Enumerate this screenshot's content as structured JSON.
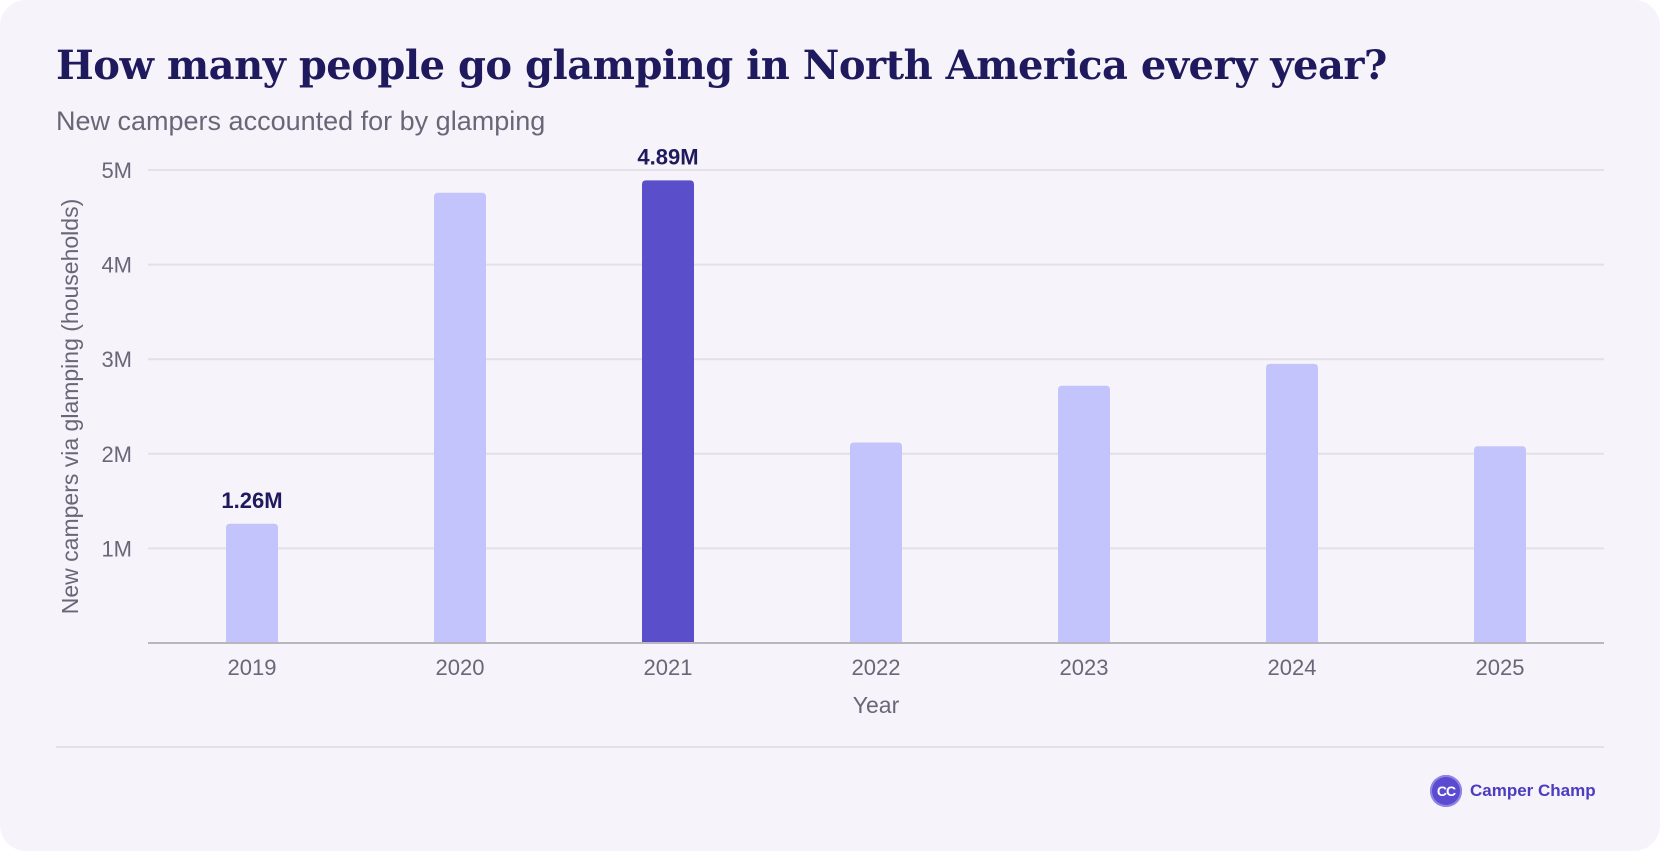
{
  "chart_data": {
    "type": "bar",
    "title": "How many people go glamping in North America every year?",
    "subtitle": "New campers accounted for by glamping",
    "xlabel": "Year",
    "ylabel": "New campers via glamping (households)",
    "categories": [
      "2019",
      "2020",
      "2021",
      "2022",
      "2023",
      "2024",
      "2025"
    ],
    "values": [
      1.26,
      4.76,
      4.89,
      2.12,
      2.72,
      2.95,
      2.08
    ],
    "unit": "M",
    "ylim": [
      0,
      5
    ],
    "yticks": [
      1,
      2,
      3,
      4,
      5
    ],
    "ytick_labels": [
      "1M",
      "2M",
      "3M",
      "4M",
      "5M"
    ],
    "highlight_category": "2021",
    "data_labels": [
      {
        "category": "2019",
        "text": "1.26M"
      },
      {
        "category": "2021",
        "text": "4.89M"
      }
    ],
    "grid": true,
    "colors": {
      "bar": "#c3c4fb",
      "highlight": "#5b4ecb",
      "data_label": "#1f1a5e",
      "grid": "#e3e0e8",
      "axis": "#b9b6c0",
      "tick_text": "#6b6677"
    }
  },
  "brand": {
    "logo_text": "CC",
    "name": "Camper Champ"
  }
}
